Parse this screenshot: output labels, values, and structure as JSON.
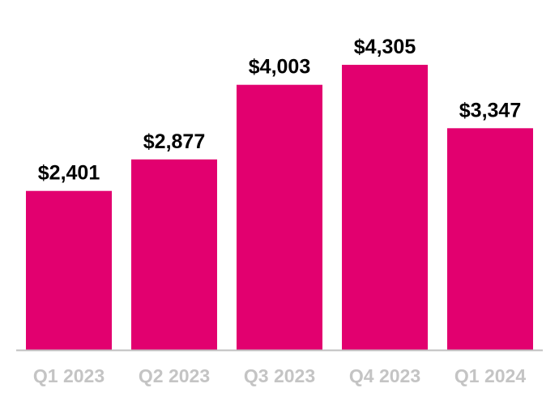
{
  "chart_data": {
    "type": "bar",
    "title": "",
    "xlabel": "",
    "ylabel": "",
    "categories": [
      "Q1 2023",
      "Q2 2023",
      "Q3 2023",
      "Q4 2023",
      "Q1 2024"
    ],
    "values": [
      2401,
      2877,
      4003,
      4305,
      3347
    ],
    "value_labels": [
      "$2,401",
      "$2,877",
      "$4,003",
      "$4,305",
      "$3,347"
    ],
    "ylim": [
      0,
      4600
    ],
    "grid": false,
    "legend": "none",
    "colors": {
      "bar": "#e2006f",
      "axis": "#bfbfbf",
      "category_text": "#c4c4c4",
      "value_text": "#000000"
    }
  }
}
